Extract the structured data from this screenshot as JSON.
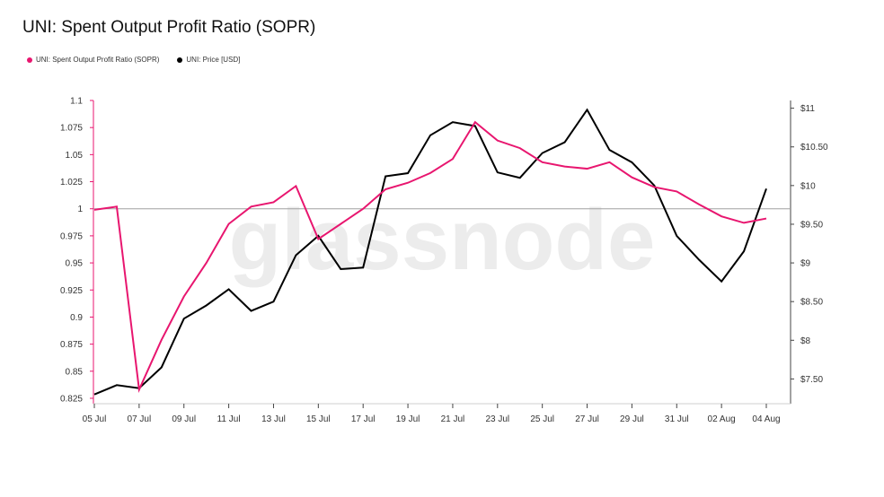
{
  "title": "UNI: Spent Output Profit Ratio (SOPR)",
  "watermark": "glassnode",
  "colors": {
    "sopr": "#e8166f",
    "price": "#000000",
    "reference": "#a0a0a0",
    "watermark": "#ececec"
  },
  "chart_data": {
    "type": "line",
    "legend_placement": "top-left",
    "grid": false,
    "x_tick_labels": [
      "05 Jul",
      "07 Jul",
      "09 Jul",
      "11 Jul",
      "13 Jul",
      "15 Jul",
      "17 Jul",
      "19 Jul",
      "21 Jul",
      "23 Jul",
      "25 Jul",
      "27 Jul",
      "29 Jul",
      "31 Jul",
      "02 Aug",
      "04 Aug"
    ],
    "x": [
      "05 Jul",
      "06 Jul",
      "07 Jul",
      "08 Jul",
      "09 Jul",
      "10 Jul",
      "11 Jul",
      "12 Jul",
      "13 Jul",
      "14 Jul",
      "15 Jul",
      "16 Jul",
      "17 Jul",
      "18 Jul",
      "19 Jul",
      "20 Jul",
      "21 Jul",
      "22 Jul",
      "23 Jul",
      "24 Jul",
      "25 Jul",
      "26 Jul",
      "27 Jul",
      "28 Jul",
      "29 Jul",
      "30 Jul",
      "31 Jul",
      "01 Aug",
      "02 Aug",
      "03 Aug",
      "04 Aug"
    ],
    "y_left": {
      "ticks": [
        "1.1",
        "1.075",
        "1.05",
        "1.025",
        "1",
        "0.975",
        "0.95",
        "0.925",
        "0.9",
        "0.875",
        "0.85",
        "0.825"
      ],
      "range": [
        0.82,
        1.1
      ],
      "reference_line": 1
    },
    "y_right": {
      "ticks": [
        "$11",
        "$10.50",
        "$10",
        "$9.50",
        "$9",
        "$8.50",
        "$8",
        "$7.50"
      ],
      "range": [
        7.18,
        11.1
      ]
    },
    "series": [
      {
        "name": "UNI: Spent Output Profit Ratio (SOPR)",
        "axis": "left",
        "values": [
          0.999,
          1.002,
          0.833,
          0.879,
          0.919,
          0.95,
          0.986,
          1.002,
          1.006,
          1.021,
          0.972,
          0.986,
          1.0,
          1.018,
          1.024,
          1.033,
          1.046,
          1.08,
          1.063,
          1.056,
          1.043,
          1.039,
          1.037,
          1.043,
          1.029,
          1.02,
          1.016,
          1.004,
          0.993,
          0.987,
          0.991
        ]
      },
      {
        "name": "UNI: Price [USD]",
        "axis": "right",
        "values": [
          7.3,
          7.42,
          7.38,
          7.65,
          8.28,
          8.45,
          8.66,
          8.38,
          8.5,
          9.1,
          9.35,
          8.92,
          8.94,
          10.12,
          10.16,
          10.65,
          10.82,
          10.77,
          10.17,
          10.1,
          10.42,
          10.56,
          10.98,
          10.46,
          10.3,
          10.0,
          9.35,
          9.04,
          8.76,
          9.15,
          9.96
        ]
      }
    ]
  }
}
